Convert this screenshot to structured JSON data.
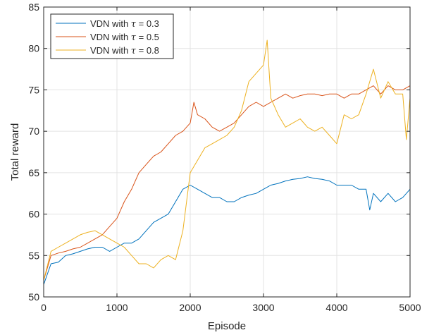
{
  "chart_data": {
    "type": "line",
    "title": "",
    "xlabel": "Episode",
    "ylabel": "Total reward",
    "xlim": [
      0,
      5000
    ],
    "ylim": [
      50,
      85
    ],
    "xticks": [
      0,
      1000,
      2000,
      3000,
      4000,
      5000
    ],
    "yticks": [
      50,
      55,
      60,
      65,
      70,
      75,
      80,
      85
    ],
    "grid": true,
    "legend_position": "top-left",
    "series": [
      {
        "name": "VDN with τ = 0.3",
        "legend_prefix": "VDN with ",
        "legend_symbol": "τ",
        "legend_suffix": " = 0.3",
        "color": "#0072BD",
        "x": [
          0,
          100,
          200,
          300,
          400,
          500,
          600,
          700,
          800,
          900,
          1000,
          1100,
          1200,
          1300,
          1400,
          1500,
          1600,
          1700,
          1800,
          1900,
          2000,
          2100,
          2200,
          2300,
          2400,
          2500,
          2600,
          2700,
          2800,
          2900,
          3000,
          3100,
          3200,
          3300,
          3400,
          3500,
          3600,
          3700,
          3800,
          3900,
          4000,
          4100,
          4200,
          4300,
          4400,
          4450,
          4500,
          4600,
          4700,
          4800,
          4900,
          5000
        ],
        "y": [
          51.5,
          54,
          54.2,
          55,
          55.2,
          55.5,
          55.8,
          56,
          56,
          55.5,
          56,
          56.5,
          56.5,
          57,
          58,
          59,
          59.5,
          60,
          61.5,
          63,
          63.5,
          63,
          62.5,
          62,
          62,
          61.5,
          61.5,
          62,
          62.3,
          62.5,
          63,
          63.5,
          63.7,
          64,
          64.2,
          64.3,
          64.5,
          64.3,
          64.2,
          64,
          63.5,
          63.5,
          63.5,
          63,
          63,
          60.5,
          62.5,
          61.5,
          62.5,
          61.5,
          62,
          63
        ]
      },
      {
        "name": "VDN with τ = 0.5",
        "legend_prefix": "VDN with ",
        "legend_symbol": "τ",
        "legend_suffix": " = 0.5",
        "color": "#D95319",
        "x": [
          0,
          100,
          200,
          300,
          400,
          500,
          600,
          700,
          800,
          900,
          1000,
          1100,
          1200,
          1300,
          1400,
          1500,
          1600,
          1700,
          1800,
          1900,
          2000,
          2050,
          2100,
          2200,
          2300,
          2400,
          2500,
          2600,
          2700,
          2800,
          2900,
          3000,
          3100,
          3200,
          3300,
          3400,
          3500,
          3600,
          3700,
          3800,
          3900,
          4000,
          4100,
          4200,
          4300,
          4400,
          4500,
          4600,
          4700,
          4800,
          4900,
          5000
        ],
        "y": [
          52,
          55,
          55.3,
          55.5,
          55.8,
          56,
          56.5,
          57,
          57.5,
          58.5,
          59.5,
          61.5,
          63,
          65,
          66,
          67,
          67.5,
          68.5,
          69.5,
          70,
          71,
          73.5,
          72,
          71.5,
          70.5,
          70,
          70.5,
          71,
          72,
          73,
          73.5,
          73,
          73.5,
          74,
          74.5,
          74,
          74.3,
          74.5,
          74.5,
          74.3,
          74.5,
          74.5,
          74,
          74.5,
          74.5,
          75,
          75.5,
          74.5,
          75.5,
          75,
          75,
          75.5
        ]
      },
      {
        "name": "VDN with τ = 0.8",
        "legend_prefix": "VDN with ",
        "legend_symbol": "τ",
        "legend_suffix": " = 0.8",
        "color": "#EDB120",
        "x": [
          0,
          100,
          200,
          300,
          400,
          500,
          600,
          700,
          800,
          900,
          1000,
          1100,
          1200,
          1300,
          1400,
          1500,
          1600,
          1700,
          1800,
          1900,
          2000,
          2100,
          2200,
          2300,
          2400,
          2500,
          2600,
          2700,
          2800,
          2900,
          3000,
          3050,
          3100,
          3200,
          3300,
          3400,
          3500,
          3600,
          3700,
          3800,
          3900,
          4000,
          4100,
          4200,
          4300,
          4400,
          4500,
          4600,
          4700,
          4800,
          4900,
          4950,
          5000
        ],
        "y": [
          52,
          55.5,
          56,
          56.5,
          57,
          57.5,
          57.8,
          58,
          57.5,
          57,
          56.5,
          56,
          55,
          54,
          54,
          53.5,
          54.5,
          55,
          54.5,
          58,
          65,
          66.5,
          68,
          68.5,
          69,
          69.5,
          70.5,
          72.5,
          76,
          77,
          78,
          81,
          74,
          72,
          70.5,
          71,
          71.5,
          70.5,
          70,
          70.5,
          69.5,
          68.5,
          72,
          71.5,
          72,
          74.5,
          77.5,
          74,
          76,
          74.5,
          74.5,
          69,
          74
        ]
      }
    ]
  }
}
